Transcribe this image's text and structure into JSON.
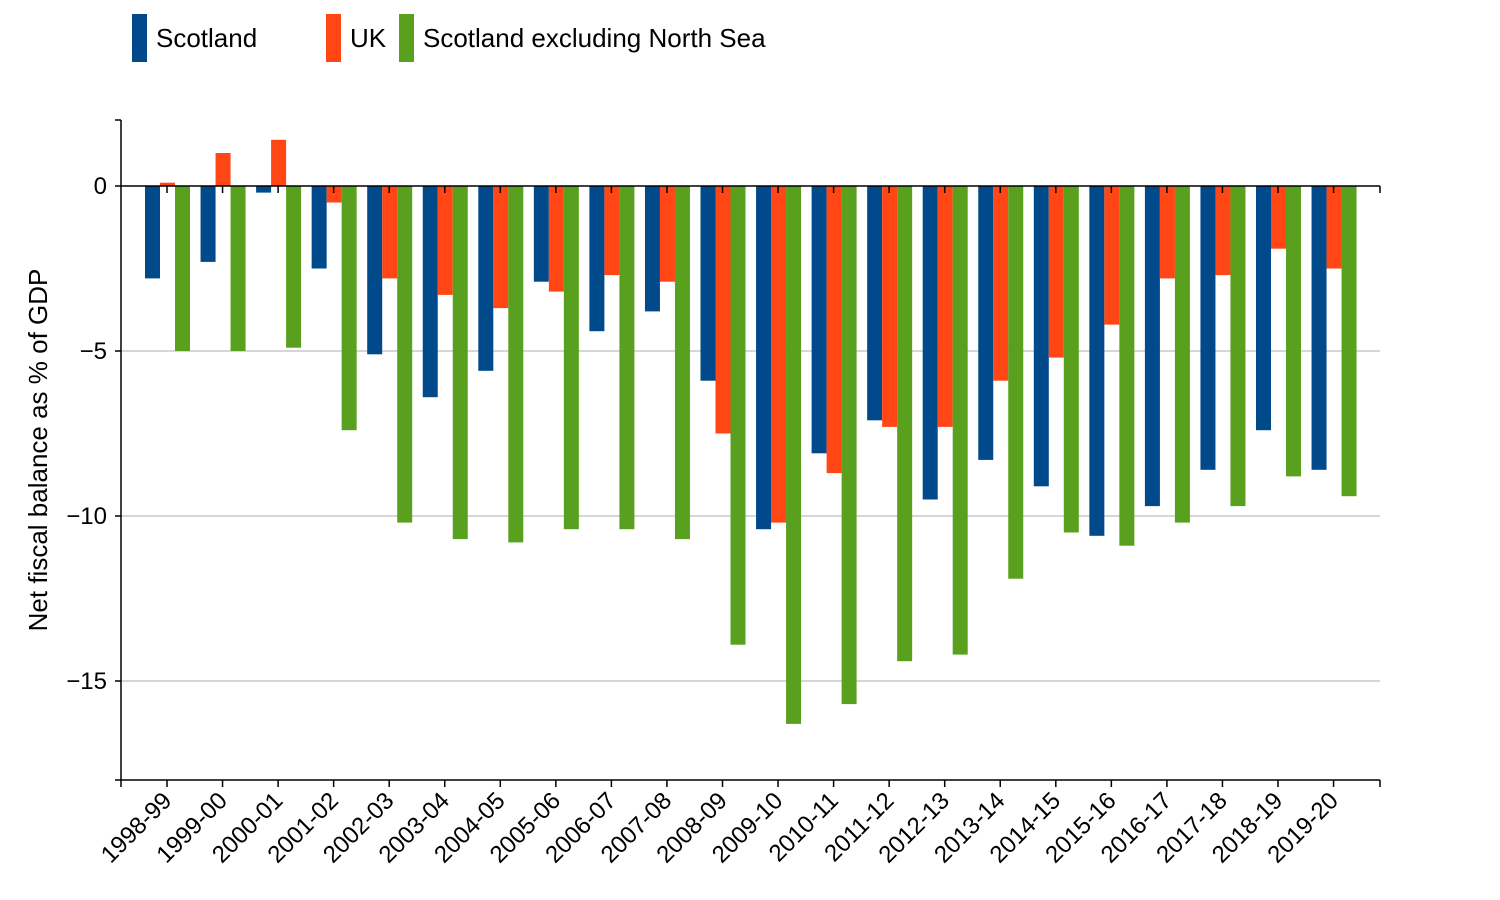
{
  "chart_data": {
    "type": "bar",
    "title": "",
    "xlabel": "",
    "ylabel": "Net fiscal balance as % of GDP",
    "ylim": [
      -18,
      2
    ],
    "yticks": [
      0,
      -5,
      -10,
      -15
    ],
    "ytick_labels": [
      "0",
      "−5",
      "−10",
      "−15"
    ],
    "grid": true,
    "legend": "top-left",
    "categories": [
      "1998-99",
      "1999-00",
      "2000-01",
      "2001-02",
      "2002-03",
      "2003-04",
      "2004-05",
      "2005-06",
      "2006-07",
      "2007-08",
      "2008-09",
      "2009-10",
      "2010-11",
      "2011-12",
      "2012-13",
      "2013-14",
      "2014-15",
      "2015-16",
      "2016-17",
      "2017-18",
      "2018-19",
      "2019-20"
    ],
    "series": [
      {
        "name": "Scotland",
        "color": "#00498a",
        "values": [
          -2.8,
          -2.3,
          -0.2,
          -2.5,
          -5.1,
          -6.4,
          -5.6,
          -2.9,
          -4.4,
          -3.8,
          -5.9,
          -10.4,
          -8.1,
          -7.1,
          -9.5,
          -8.3,
          -9.1,
          -10.6,
          -9.7,
          -8.6,
          -7.4,
          -8.6
        ]
      },
      {
        "name": "UK",
        "color": "#ff4614",
        "values": [
          0.1,
          1.0,
          1.4,
          -0.5,
          -2.8,
          -3.3,
          -3.7,
          -3.2,
          -2.7,
          -2.9,
          -7.5,
          -10.2,
          -8.7,
          -7.3,
          -7.3,
          -5.9,
          -5.2,
          -4.2,
          -2.8,
          -2.7,
          -1.9,
          -2.5
        ]
      },
      {
        "name": "Scotland excluding North Sea",
        "color": "#59a01e",
        "values": [
          -5.0,
          -5.0,
          -4.9,
          -7.4,
          -10.2,
          -10.7,
          -10.8,
          -10.4,
          -10.4,
          -10.7,
          -13.9,
          -16.3,
          -15.7,
          -14.4,
          -14.2,
          -11.9,
          -10.5,
          -10.9,
          -10.2,
          -9.7,
          -8.8,
          -9.4
        ]
      }
    ]
  }
}
